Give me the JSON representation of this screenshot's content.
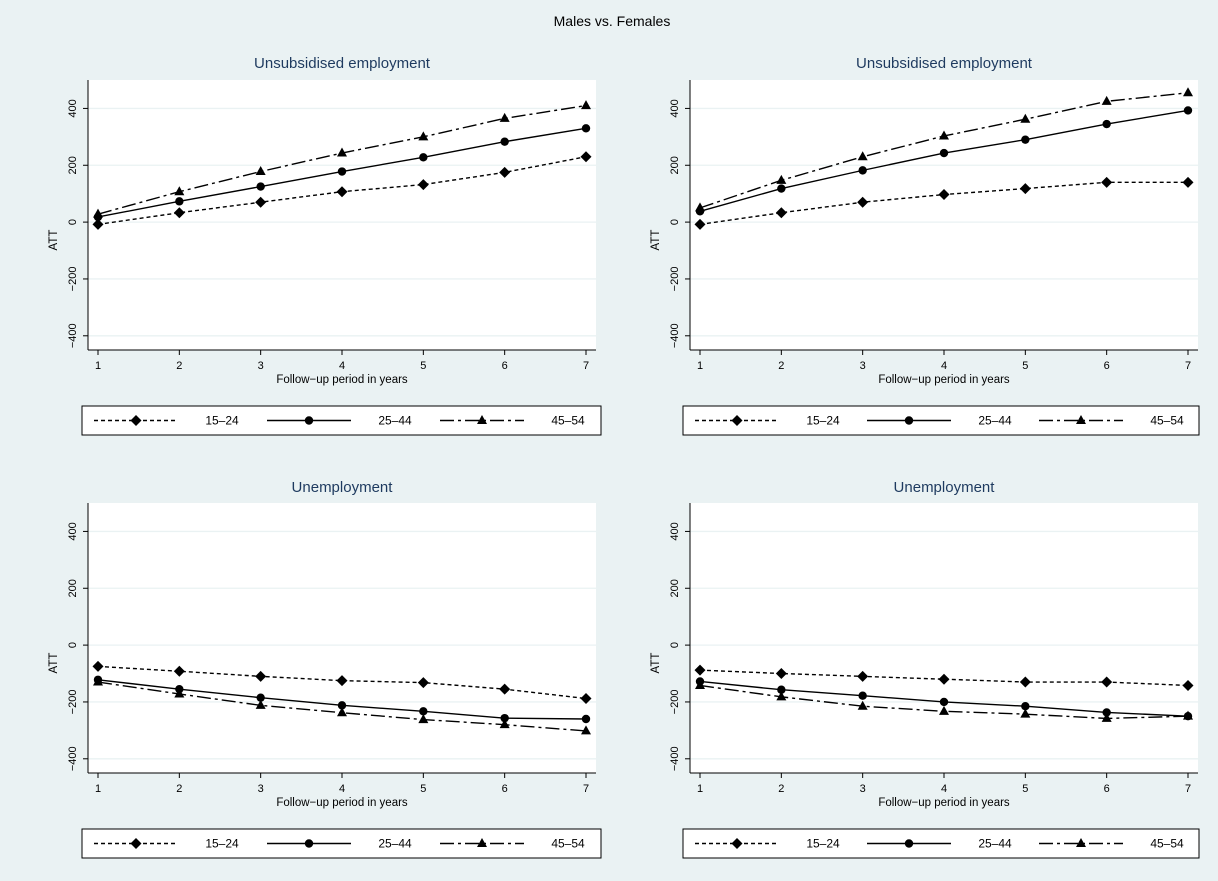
{
  "title": "Males vs. Females",
  "colors": {
    "background": "#eaf2f3",
    "plot_area": "#ffffff",
    "title": "#1e3a5f",
    "line": "#000000",
    "grid": "#eaf2f3"
  },
  "chart_data": [
    {
      "type": "line",
      "title": "Unsubsidised employment",
      "xlabel": "Follow−up period in years",
      "ylabel": "ATT",
      "x": [
        1,
        2,
        3,
        4,
        5,
        6,
        7
      ],
      "xticks": [
        "1",
        "2",
        "3",
        "4",
        "5",
        "6",
        "7"
      ],
      "ylim": [
        -450,
        500
      ],
      "yticks": [
        "−400",
        "−200",
        "0",
        "200",
        "400"
      ],
      "grid": true,
      "legend": "bottom",
      "series": [
        {
          "name": "15–24",
          "marker": "diamond",
          "dash": "dotted",
          "values": [
            -8,
            33,
            70,
            107,
            132,
            175,
            230
          ]
        },
        {
          "name": "25–44",
          "marker": "circle",
          "dash": "solid",
          "values": [
            18,
            73,
            125,
            178,
            228,
            283,
            330
          ]
        },
        {
          "name": "45–54",
          "marker": "triangle",
          "dash": "dashdot",
          "values": [
            28,
            107,
            178,
            243,
            300,
            365,
            410
          ]
        }
      ]
    },
    {
      "type": "line",
      "title": "Unsubsidised employment",
      "xlabel": "Follow−up period in years",
      "ylabel": "ATT",
      "x": [
        1,
        2,
        3,
        4,
        5,
        6,
        7
      ],
      "xticks": [
        "1",
        "2",
        "3",
        "4",
        "5",
        "6",
        "7"
      ],
      "ylim": [
        -450,
        500
      ],
      "yticks": [
        "−400",
        "−200",
        "0",
        "200",
        "400"
      ],
      "grid": true,
      "legend": "bottom",
      "series": [
        {
          "name": "15–24",
          "marker": "diamond",
          "dash": "dotted",
          "values": [
            -8,
            33,
            70,
            97,
            118,
            140,
            140
          ]
        },
        {
          "name": "25–44",
          "marker": "circle",
          "dash": "solid",
          "values": [
            38,
            118,
            182,
            243,
            290,
            345,
            393
          ]
        },
        {
          "name": "45–54",
          "marker": "triangle",
          "dash": "dashdot",
          "values": [
            50,
            147,
            230,
            303,
            362,
            425,
            455
          ]
        }
      ]
    },
    {
      "type": "line",
      "title": "Unemployment",
      "xlabel": "Follow−up period in years",
      "ylabel": "ATT",
      "x": [
        1,
        2,
        3,
        4,
        5,
        6,
        7
      ],
      "xticks": [
        "1",
        "2",
        "3",
        "4",
        "5",
        "6",
        "7"
      ],
      "ylim": [
        -450,
        500
      ],
      "yticks": [
        "−400",
        "−200",
        "0",
        "200",
        "400"
      ],
      "grid": true,
      "legend": "bottom",
      "series": [
        {
          "name": "15–24",
          "marker": "diamond",
          "dash": "dotted",
          "values": [
            -75,
            -92,
            -110,
            -125,
            -132,
            -155,
            -188
          ]
        },
        {
          "name": "25–44",
          "marker": "circle",
          "dash": "solid",
          "values": [
            -122,
            -155,
            -185,
            -212,
            -233,
            -257,
            -260
          ]
        },
        {
          "name": "45–54",
          "marker": "triangle",
          "dash": "dashdot",
          "values": [
            -130,
            -172,
            -212,
            -238,
            -262,
            -280,
            -302
          ]
        }
      ]
    },
    {
      "type": "line",
      "title": "Unemployment",
      "xlabel": "Follow−up period in years",
      "ylabel": "ATT",
      "x": [
        1,
        2,
        3,
        4,
        5,
        6,
        7
      ],
      "xticks": [
        "1",
        "2",
        "3",
        "4",
        "5",
        "6",
        "7"
      ],
      "ylim": [
        -450,
        500
      ],
      "yticks": [
        "−400",
        "−200",
        "0",
        "200",
        "400"
      ],
      "grid": true,
      "legend": "bottom",
      "series": [
        {
          "name": "15–24",
          "marker": "diamond",
          "dash": "dotted",
          "values": [
            -88,
            -100,
            -110,
            -120,
            -130,
            -130,
            -142
          ]
        },
        {
          "name": "25–44",
          "marker": "circle",
          "dash": "solid",
          "values": [
            -128,
            -157,
            -178,
            -200,
            -215,
            -237,
            -250
          ]
        },
        {
          "name": "45–54",
          "marker": "triangle",
          "dash": "dashdot",
          "values": [
            -142,
            -182,
            -215,
            -233,
            -243,
            -258,
            -250
          ]
        }
      ]
    }
  ]
}
